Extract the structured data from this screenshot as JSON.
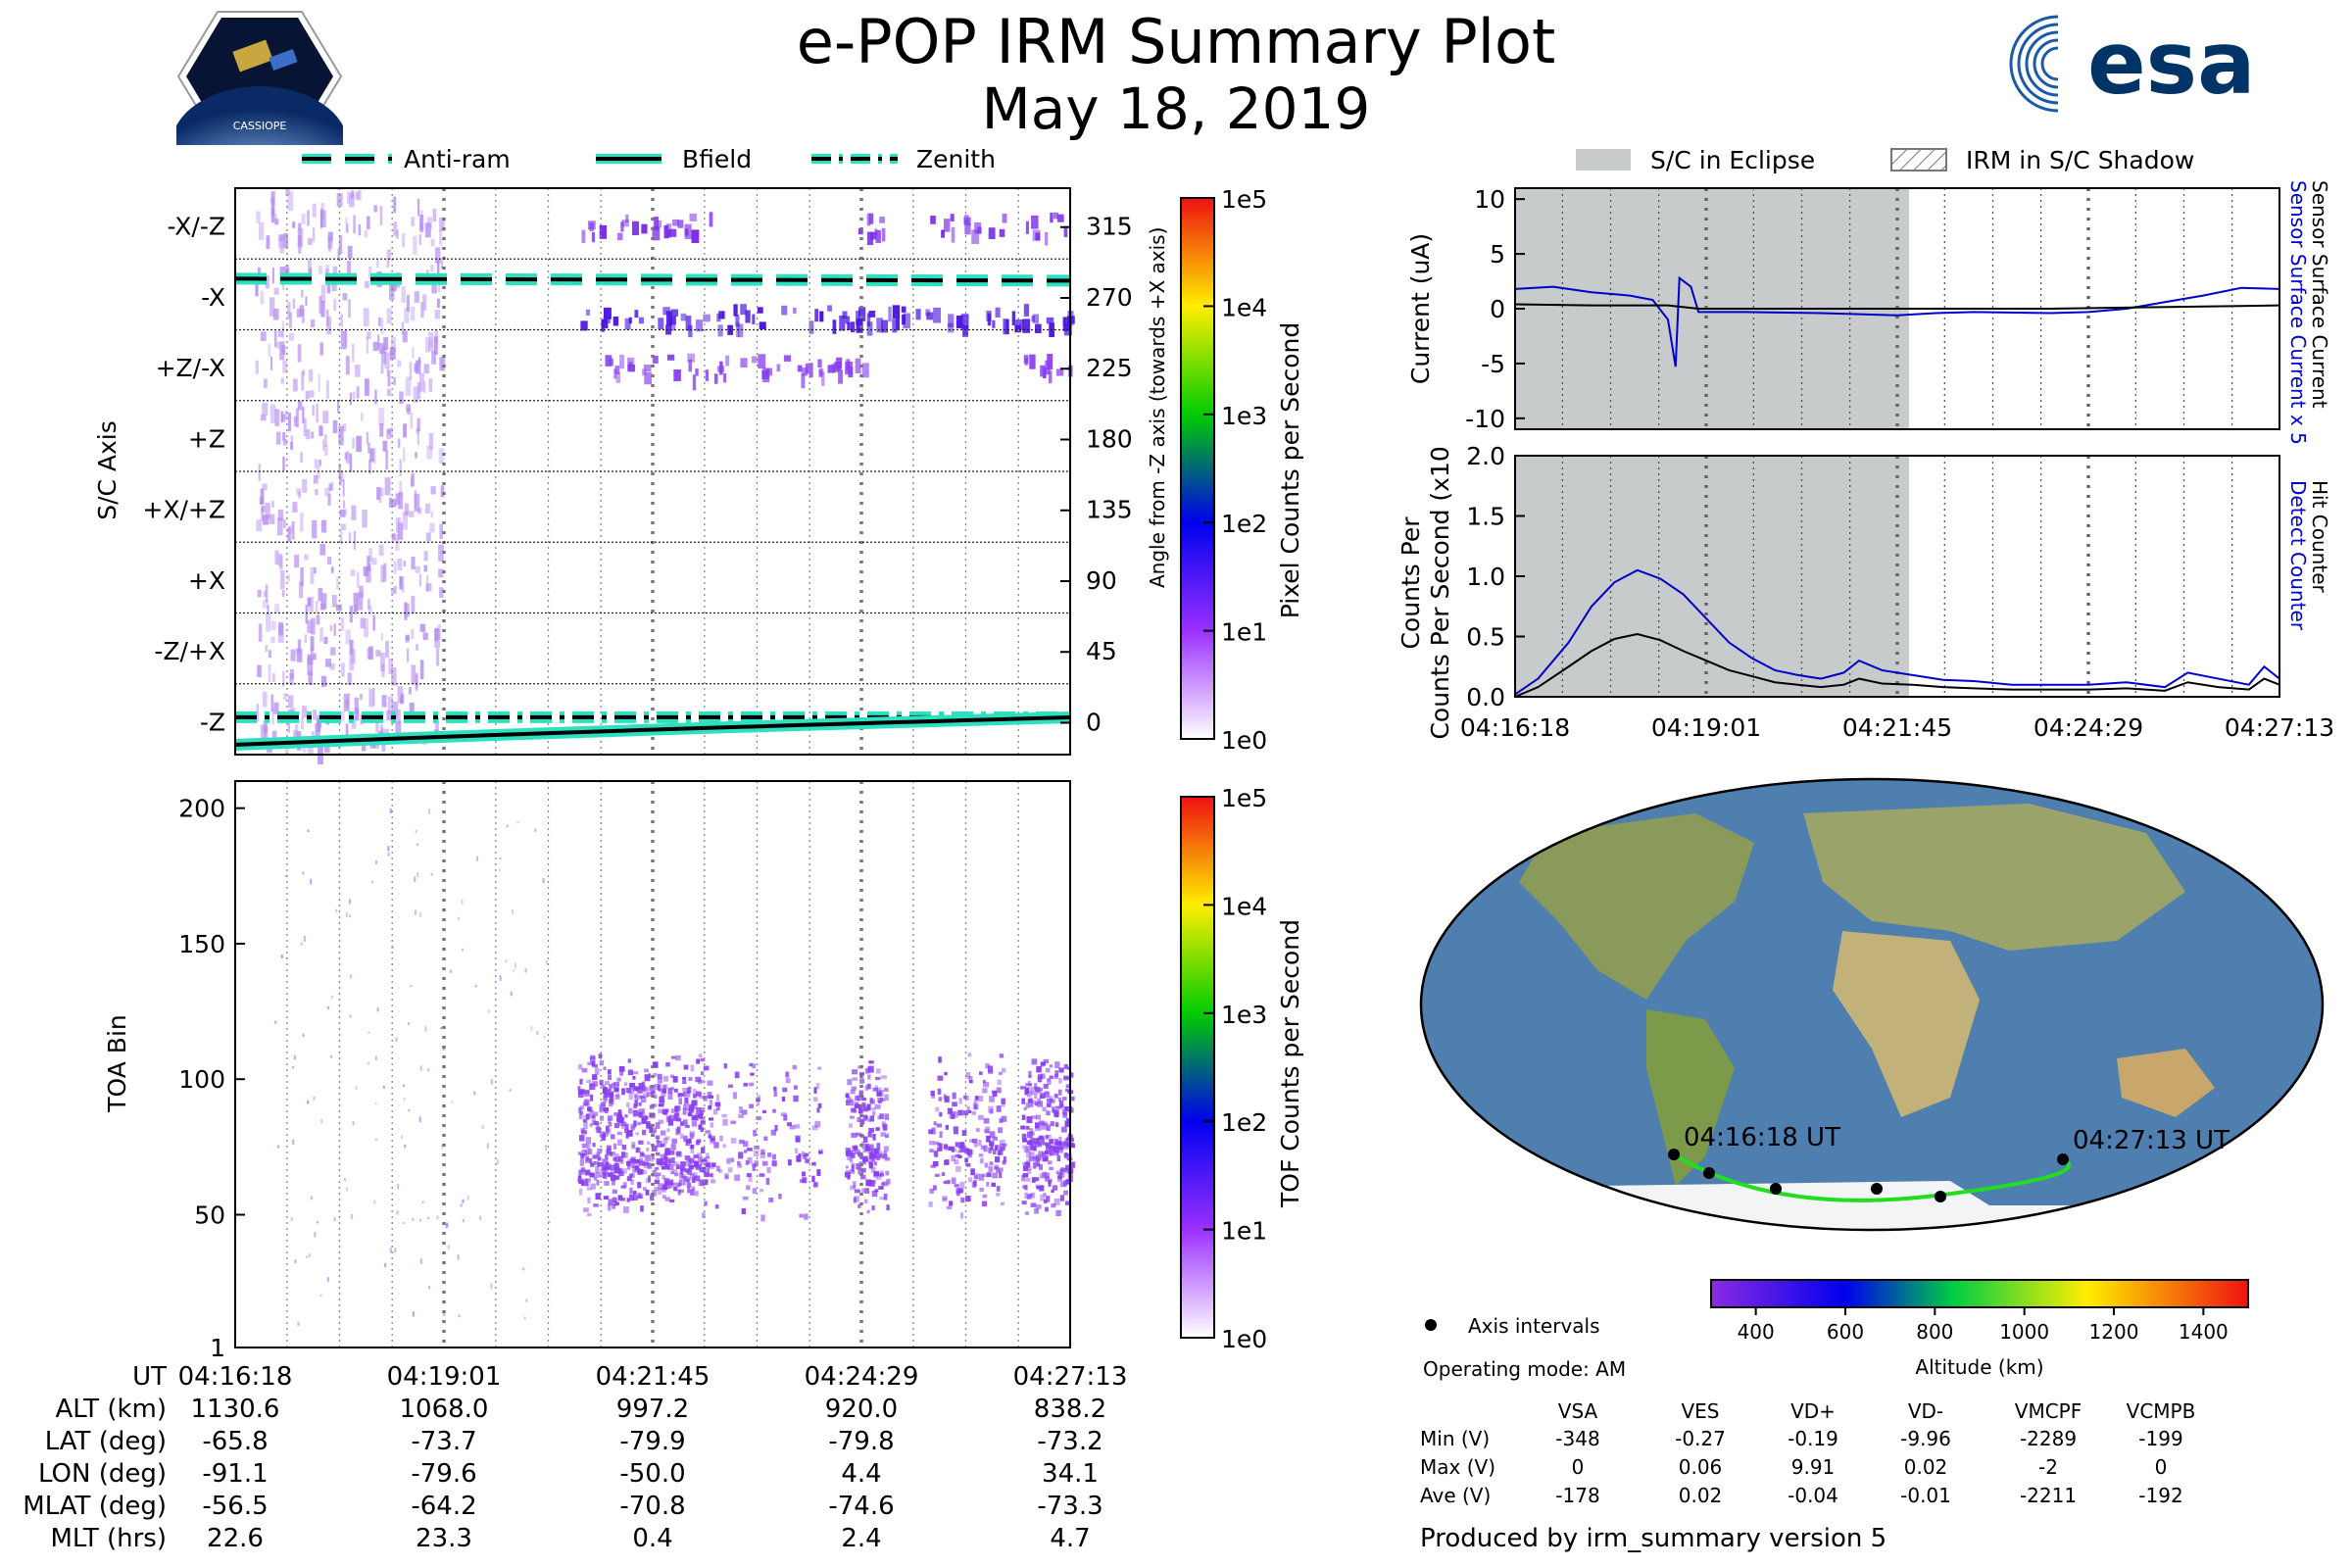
{
  "header": {
    "title": "e-POP IRM Summary Plot",
    "date": "May 18, 2019",
    "logo_left_text": "CASSIOPE",
    "logo_right_text": "esa"
  },
  "colors": {
    "electron_current": "#0000cc",
    "sensor_current": "#000000",
    "detect_counter": "#0000cc",
    "hit_counter": "#000000",
    "eclipse_fill": "#c8cbcb",
    "anti_ram": "#000000",
    "bfield_glow": "#2de0c0",
    "track_green": "#22dd22",
    "pixel_purple": "#8a2be2"
  },
  "legend_left": {
    "items": [
      "Anti-ram",
      "Bfield",
      "Zenith"
    ]
  },
  "legend_right": {
    "items": [
      "S/C in Eclipse",
      "IRM in S/C Shadow"
    ]
  },
  "chart_data": [
    {
      "type": "heatmap",
      "name": "pixel",
      "ylabel": "S/C Axis",
      "y2label": "Angle from -Z axis (towards +X axis)",
      "categories": [
        "-X/-Z",
        "-X",
        "+Z/-X",
        "+Z",
        "+X/+Z",
        "+X",
        "-Z/+X",
        "-Z"
      ],
      "y2_ticks": [
        "315",
        "270",
        "225",
        "180",
        "135",
        "90",
        "45",
        "0"
      ],
      "colorbar_label": "Pixel Counts per Second",
      "colorbar_ticks": [
        "1e5",
        "1e4",
        "1e3",
        "1e2",
        "1e1",
        "1e0"
      ],
      "x_ticks": [
        "04:16:18",
        "04:19:01",
        "04:21:45",
        "04:24:29",
        "04:27:13"
      ],
      "lines": [
        {
          "name": "Anti-ram",
          "angle": [
            272,
            272
          ]
        },
        {
          "name": "Zenith",
          "angle": [
            0,
            0
          ]
        },
        {
          "name": "Bfield",
          "angle": [
            -10,
            4
          ]
        }
      ]
    },
    {
      "type": "heatmap",
      "name": "tof",
      "ylabel": "TOA Bin",
      "yticks": [
        "200",
        "150",
        "100",
        "50",
        "1"
      ],
      "ylim": [
        1,
        210
      ],
      "colorbar_label": "TOF Counts per Second",
      "colorbar_ticks": [
        "1e5",
        "1e4",
        "1e3",
        "1e2",
        "1e1",
        "1e0"
      ]
    },
    {
      "type": "line",
      "name": "current",
      "ylabel": "Current (uA)",
      "ylim": [
        -11,
        11
      ],
      "yticks": [
        "10",
        "5",
        "0",
        "-5",
        "-10"
      ],
      "right_label_blue": "Sensor Surface Current x 5",
      "right_label_black": "Sensor Surface Current",
      "series": [
        {
          "name": "Sensor Surface Current x 5",
          "x": [
            0,
            0.05,
            0.1,
            0.15,
            0.18,
            0.2,
            0.21,
            0.215,
            0.23,
            0.24,
            0.26,
            0.3,
            0.4,
            0.45,
            0.5,
            0.55,
            0.6,
            0.7,
            0.75,
            0.8,
            0.85,
            0.9,
            0.95,
            1.0
          ],
          "y": [
            1.8,
            2.0,
            1.5,
            1.2,
            0.8,
            -1.0,
            -5.3,
            2.8,
            2.0,
            -0.3,
            -0.3,
            -0.3,
            -0.4,
            -0.5,
            -0.6,
            -0.4,
            -0.3,
            -0.4,
            -0.3,
            0.0,
            0.6,
            1.2,
            1.9,
            1.8
          ]
        },
        {
          "name": "Sensor Surface Current",
          "x": [
            0,
            0.1,
            0.2,
            0.24,
            0.3,
            0.5,
            0.7,
            0.9,
            1.0
          ],
          "y": [
            0.4,
            0.3,
            0.3,
            0.0,
            0.0,
            0.0,
            0.0,
            0.2,
            0.3
          ]
        }
      ]
    },
    {
      "type": "line",
      "name": "counts",
      "ylabel": "Counts Per Second (x10³)",
      "ylim": [
        0,
        2.0
      ],
      "yticks": [
        "2.0",
        "1.5",
        "1.0",
        "0.5",
        "0.0"
      ],
      "x_ticks": [
        "04:16:18",
        "04:19:01",
        "04:21:45",
        "04:24:29",
        "04:27:13"
      ],
      "right_label_blue": "Detect Counter",
      "right_label_black": "Hit Counter",
      "series": [
        {
          "name": "Detect Counter",
          "x": [
            0,
            0.03,
            0.07,
            0.1,
            0.13,
            0.16,
            0.19,
            0.22,
            0.25,
            0.28,
            0.31,
            0.34,
            0.37,
            0.4,
            0.43,
            0.45,
            0.48,
            0.52,
            0.56,
            0.6,
            0.65,
            0.7,
            0.75,
            0.8,
            0.85,
            0.88,
            0.92,
            0.96,
            0.98,
            1.0
          ],
          "y": [
            0.02,
            0.15,
            0.45,
            0.75,
            0.95,
            1.05,
            0.98,
            0.85,
            0.65,
            0.45,
            0.32,
            0.22,
            0.18,
            0.15,
            0.2,
            0.3,
            0.22,
            0.18,
            0.14,
            0.13,
            0.1,
            0.1,
            0.1,
            0.12,
            0.08,
            0.2,
            0.15,
            0.1,
            0.25,
            0.15
          ]
        },
        {
          "name": "Hit Counter",
          "x": [
            0,
            0.03,
            0.07,
            0.1,
            0.13,
            0.16,
            0.19,
            0.22,
            0.25,
            0.28,
            0.31,
            0.34,
            0.37,
            0.4,
            0.43,
            0.45,
            0.48,
            0.52,
            0.56,
            0.6,
            0.65,
            0.7,
            0.75,
            0.8,
            0.85,
            0.88,
            0.92,
            0.96,
            0.98,
            1.0
          ],
          "y": [
            0.0,
            0.08,
            0.25,
            0.38,
            0.48,
            0.52,
            0.47,
            0.38,
            0.3,
            0.22,
            0.17,
            0.12,
            0.1,
            0.08,
            0.1,
            0.15,
            0.11,
            0.1,
            0.08,
            0.07,
            0.06,
            0.06,
            0.06,
            0.07,
            0.05,
            0.12,
            0.08,
            0.06,
            0.15,
            0.1
          ]
        }
      ]
    }
  ],
  "orbit_table": {
    "rows": [
      {
        "label": "UT",
        "values": [
          "04:16:18",
          "04:19:01",
          "04:21:45",
          "04:24:29",
          "04:27:13"
        ]
      },
      {
        "label": "ALT (km)",
        "values": [
          "1130.6",
          "1068.0",
          "997.2",
          "920.0",
          "838.2"
        ]
      },
      {
        "label": "LAT (deg)",
        "values": [
          "-65.8",
          "-73.7",
          "-79.9",
          "-79.8",
          "-73.2"
        ]
      },
      {
        "label": "LON (deg)",
        "values": [
          "-91.1",
          "-79.6",
          "-50.0",
          "4.4",
          "34.1"
        ]
      },
      {
        "label": "MLAT (deg)",
        "values": [
          "-56.5",
          "-64.2",
          "-70.8",
          "-74.6",
          "-73.3"
        ]
      },
      {
        "label": "MLT (hrs)",
        "values": [
          "22.6",
          "23.3",
          "0.4",
          "2.4",
          "4.7"
        ]
      }
    ]
  },
  "map": {
    "start_label": "04:16:18 UT",
    "end_label": "04:27:13 UT",
    "legend_label": "Axis intervals",
    "operating_mode": "Operating mode: AM",
    "altitude_label": "Altitude (km)",
    "altitude_ticks": [
      "400",
      "600",
      "800",
      "1000",
      "1200",
      "1400"
    ]
  },
  "voltage_table": {
    "columns": [
      "VSA",
      "VES",
      "VD+",
      "VD-",
      "VMCPF",
      "VCMPB"
    ],
    "rows": [
      {
        "label": "Min (V)",
        "values": [
          "-348",
          "-0.27",
          "-0.19",
          "-9.96",
          "-2289",
          "-199"
        ]
      },
      {
        "label": "Max (V)",
        "values": [
          "0",
          "0.06",
          "9.91",
          "0.02",
          "-2",
          "0"
        ]
      },
      {
        "label": "Ave (V)",
        "values": [
          "-178",
          "0.02",
          "-0.04",
          "-0.01",
          "-2211",
          "-192"
        ]
      }
    ]
  },
  "footer": "Produced by irm_summary version 5"
}
